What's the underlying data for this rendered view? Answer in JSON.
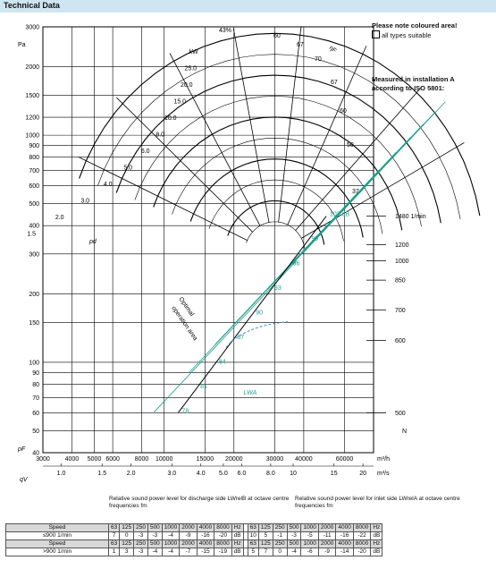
{
  "header": {
    "title": "Technical Data"
  },
  "notes": {
    "colour_note": "Please note coloured area!",
    "all_types": "all types suitable",
    "measured_1": "Measured in installation A",
    "measured_2": "according to ISO 5801:"
  },
  "chart_data": {
    "type": "line",
    "title": "",
    "ylabel": "pF",
    "yunit": "Pa",
    "y_ticks": [
      "40",
      "50",
      "60",
      "70",
      "80",
      "90",
      "100",
      "150",
      "200",
      "300",
      "400",
      "500",
      "600",
      "700",
      "800",
      "900",
      "1000",
      "1200",
      "1500",
      "2000",
      "3000"
    ],
    "y_tick_values": [
      40,
      50,
      60,
      70,
      80,
      90,
      100,
      150,
      200,
      300,
      400,
      500,
      600,
      700,
      800,
      900,
      1000,
      1200,
      1500,
      2000,
      3000
    ],
    "ylim": [
      40,
      3000
    ],
    "x_ticks_m3h": [
      "3000",
      "4000",
      "5000",
      "6000",
      "8000",
      "10000",
      "15000",
      "20000",
      "30000",
      "40000",
      "60000"
    ],
    "x_tick_values_m3h": [
      3000,
      4000,
      5000,
      6000,
      8000,
      10000,
      15000,
      20000,
      30000,
      40000,
      60000
    ],
    "x_unit_m3h": "m³/h",
    "x_ticks_m3s": [
      "1.0",
      "1.5",
      "2.0",
      "3.0",
      "4.0",
      "5.0",
      "6.0",
      "8.0",
      "10",
      "15",
      "20"
    ],
    "x_unit_m3s": "m³/s",
    "xlabel": "qV",
    "xlim_m3h": [
      3000,
      80000
    ],
    "power_labels": [
      "kW",
      "25.0",
      "20.0",
      "15.0",
      "10.0",
      "8.0",
      "6.0",
      "5.0",
      "4.0",
      "3.0",
      "2.0",
      "1.5"
    ],
    "efficiency_labels": [
      "43%",
      "60",
      "67",
      "70",
      "67",
      "60",
      "50",
      "37"
    ],
    "efficiency_axis": "ηF",
    "speed_ticks": [
      "1480 1/min",
      "1200",
      "1000",
      "850",
      "700",
      "600",
      "500"
    ],
    "speed_values": [
      1480,
      1200,
      1000,
      850,
      700,
      600,
      500
    ],
    "speed_axis": "N",
    "sound_labels": [
      "102 dB",
      "99",
      "96",
      "93",
      "90",
      "87",
      "84",
      "81",
      "78"
    ],
    "sound_axis": "LWA",
    "optimal_label_1": "Optimal",
    "optimal_label_2": "operation area",
    "pd_label": "pd"
  },
  "sound_tables": {
    "discharge_caption": "Relative sound power level for discharge side LWrelB at octave centre frequencies fm",
    "inlet_caption": "Relative sound power level for inlet side LWrelA at octave centre frequencies fm",
    "freq_header": [
      "63",
      "125",
      "250",
      "500",
      "1000",
      "2000",
      "4000",
      "8000",
      "Hz"
    ],
    "rows": [
      {
        "label": "Speed",
        "header": true
      },
      {
        "label": "≤900 1/min",
        "discharge": [
          "7",
          "0",
          "-3",
          "-3",
          "-4",
          "-9",
          "-16",
          "-20",
          "dB"
        ],
        "inlet": [
          "10",
          "5",
          "-1",
          "-3",
          "-5",
          "-11",
          "-16",
          "-22",
          "dB"
        ]
      },
      {
        "label": "Speed",
        "header": true
      },
      {
        "label": ">900 1/min",
        "discharge": [
          "1",
          "3",
          "-3",
          "-4",
          "-4",
          "-7",
          "-15",
          "-19",
          "dB"
        ],
        "inlet": [
          "5",
          "7",
          "0",
          "-4",
          "-6",
          "-9",
          "-14",
          "-20",
          "dB"
        ]
      }
    ]
  },
  "colors": {
    "header_bg": "#cfe6f2",
    "teal": "#1f9e8e",
    "blue": "#3b8fd4",
    "grid": "#222222"
  }
}
